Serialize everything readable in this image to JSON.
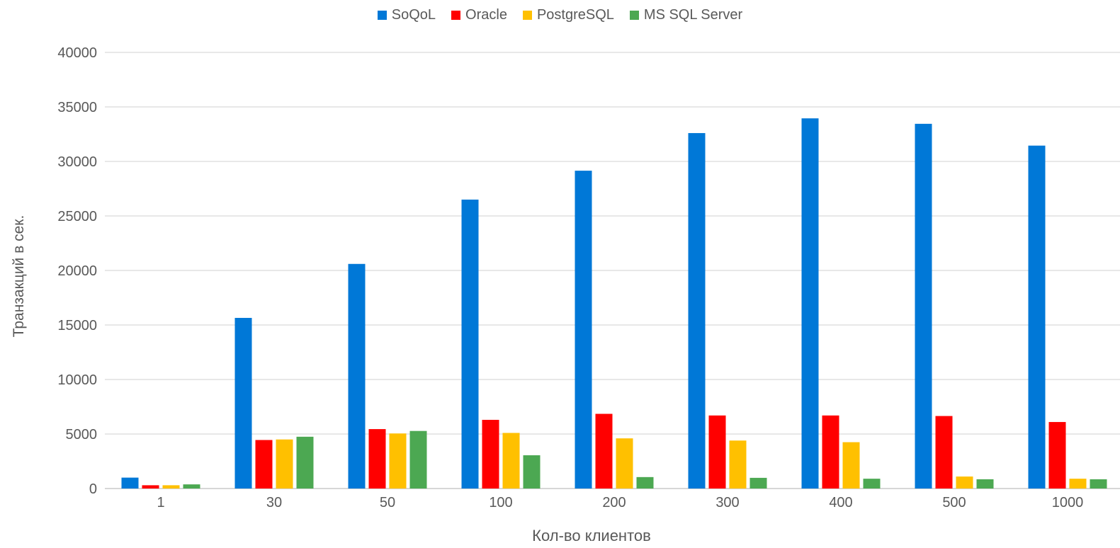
{
  "chart_data": {
    "type": "bar",
    "title": "",
    "xlabel": "Кол-во клиентов",
    "ylabel": "Транзакций в сек.",
    "ylim": [
      0,
      40000
    ],
    "yticks": [
      0,
      5000,
      10000,
      15000,
      20000,
      25000,
      30000,
      35000,
      40000
    ],
    "grid": true,
    "legend_position": "top",
    "categories": [
      "1",
      "30",
      "50",
      "100",
      "200",
      "300",
      "400",
      "500",
      "1000"
    ],
    "series": [
      {
        "name": "SoQoL",
        "color": "#0078D7",
        "values": [
          1000,
          15650,
          20600,
          26500,
          29150,
          32600,
          33950,
          33450,
          31450
        ]
      },
      {
        "name": "Oracle",
        "color": "#FF0000",
        "values": [
          300,
          4450,
          5450,
          6300,
          6850,
          6700,
          6700,
          6650,
          6100
        ]
      },
      {
        "name": "PostgreSQL",
        "color": "#FFC000",
        "values": [
          300,
          4500,
          5050,
          5100,
          4600,
          4400,
          4250,
          1100,
          900
        ]
      },
      {
        "name": "MS SQL Server",
        "color": "#4CA852",
        "values": [
          380,
          4750,
          5280,
          3050,
          1050,
          980,
          900,
          850,
          850
        ]
      }
    ]
  }
}
